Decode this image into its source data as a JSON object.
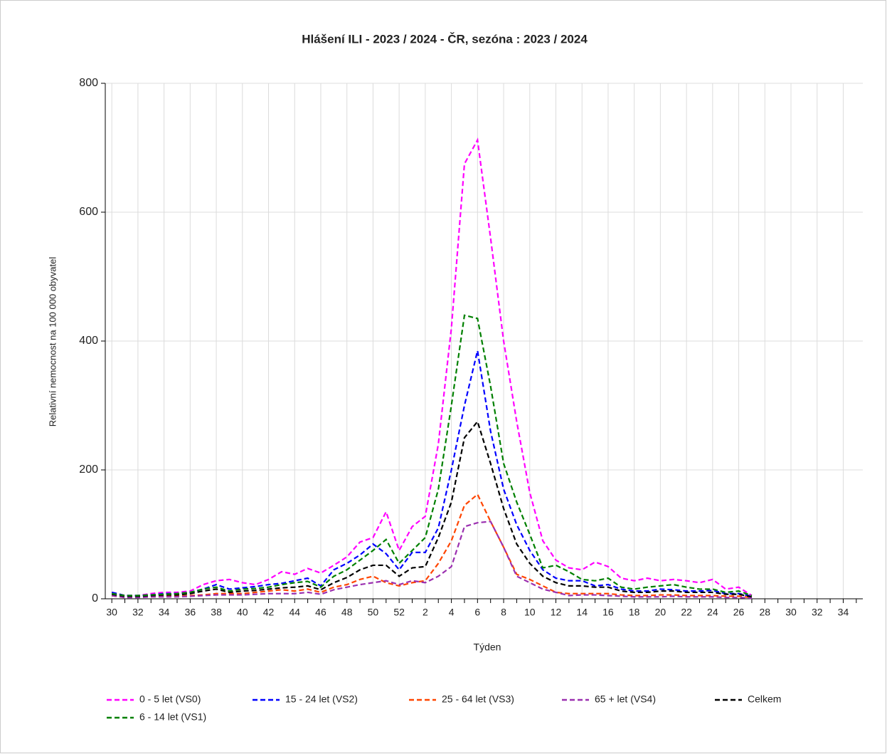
{
  "chart_data": {
    "type": "line",
    "title": "Hlášení ILI - 2023 / 2024 - ČR, sezóna : 2023 / 2024",
    "x_label": "Týden",
    "y_label": "Relativní nemocnost na 100 000 obyvatel",
    "categories": [
      "30",
      null,
      "32",
      null,
      "34",
      null,
      "36",
      null,
      "38",
      null,
      "40",
      null,
      "42",
      null,
      "44",
      null,
      "46",
      null,
      "48",
      null,
      "50",
      null,
      "52",
      null,
      "2",
      null,
      "4",
      null,
      "6",
      null,
      "8",
      null,
      "10",
      null,
      "12",
      null,
      "14",
      null,
      "16",
      null,
      "18",
      null,
      "20",
      null,
      "22",
      null,
      "24",
      null,
      "26",
      null,
      "28",
      null,
      "30",
      null,
      "32",
      null,
      "34",
      null
    ],
    "ylim": [
      0,
      800
    ],
    "yticks": [
      0,
      200,
      400,
      600,
      800
    ],
    "grid": true,
    "dashed": true,
    "series": [
      {
        "name": "0 - 5 let (VS0)",
        "color": "#ff00ff",
        "values": [
          10,
          5,
          5,
          8,
          10,
          10,
          12,
          22,
          28,
          30,
          25,
          22,
          30,
          42,
          38,
          47,
          40,
          52,
          65,
          88,
          95,
          135,
          75,
          112,
          128,
          240,
          420,
          675,
          712,
          560,
          400,
          275,
          165,
          90,
          60,
          48,
          45,
          57,
          50,
          32,
          28,
          32,
          28,
          30,
          28,
          25,
          30,
          15,
          18,
          5,
          null,
          null,
          null,
          null,
          null,
          null,
          null,
          null
        ]
      },
      {
        "name": "15 - 24 let (VS2)",
        "color": "#0000ff",
        "values": [
          10,
          5,
          5,
          6,
          8,
          8,
          10,
          15,
          22,
          15,
          17,
          19,
          22,
          24,
          28,
          32,
          20,
          45,
          55,
          68,
          85,
          70,
          45,
          72,
          72,
          110,
          200,
          300,
          385,
          260,
          170,
          115,
          75,
          45,
          32,
          28,
          28,
          20,
          22,
          15,
          12,
          12,
          15,
          14,
          12,
          12,
          13,
          8,
          8,
          4,
          null,
          null,
          null,
          null,
          null,
          null,
          null,
          null
        ]
      },
      {
        "name": "25 - 64 let (VS3)",
        "color": "#ff4500",
        "values": [
          5,
          2,
          3,
          3,
          4,
          4,
          5,
          6,
          8,
          8,
          8,
          10,
          12,
          14,
          12,
          15,
          10,
          18,
          22,
          30,
          35,
          25,
          20,
          25,
          28,
          55,
          90,
          145,
          162,
          120,
          80,
          38,
          30,
          20,
          10,
          8,
          8,
          8,
          8,
          6,
          5,
          5,
          6,
          6,
          5,
          5,
          5,
          4,
          4,
          2,
          null,
          null,
          null,
          null,
          null,
          null,
          null,
          null
        ]
      },
      {
        "name": "65 + let (VS4)",
        "color": "#9b30b0",
        "values": [
          5,
          2,
          2,
          3,
          3,
          3,
          4,
          5,
          6,
          6,
          6,
          7,
          8,
          8,
          8,
          10,
          7,
          14,
          18,
          22,
          25,
          28,
          22,
          28,
          25,
          35,
          50,
          112,
          118,
          120,
          80,
          35,
          25,
          15,
          10,
          5,
          6,
          6,
          5,
          4,
          3,
          3,
          3,
          4,
          3,
          3,
          3,
          2,
          2,
          1,
          null,
          null,
          null,
          null,
          null,
          null,
          null,
          null
        ]
      },
      {
        "name": "Celkem",
        "color": "#000000",
        "values": [
          7,
          4,
          4,
          5,
          6,
          6,
          8,
          12,
          15,
          10,
          12,
          13,
          15,
          17,
          18,
          20,
          14,
          25,
          33,
          45,
          52,
          52,
          35,
          48,
          50,
          95,
          150,
          250,
          275,
          210,
          140,
          85,
          55,
          35,
          25,
          20,
          20,
          18,
          18,
          12,
          10,
          10,
          12,
          12,
          10,
          10,
          10,
          7,
          7,
          3,
          null,
          null,
          null,
          null,
          null,
          null,
          null,
          null
        ]
      },
      {
        "name": "6 - 14 let (VS1)",
        "color": "#008000",
        "values": [
          8,
          5,
          5,
          6,
          7,
          8,
          10,
          15,
          18,
          12,
          15,
          16,
          18,
          22,
          25,
          27,
          18,
          35,
          45,
          60,
          75,
          92,
          55,
          75,
          95,
          170,
          300,
          440,
          435,
          330,
          210,
          150,
          100,
          48,
          52,
          42,
          30,
          28,
          32,
          18,
          15,
          18,
          20,
          22,
          18,
          15,
          15,
          10,
          12,
          5,
          null,
          null,
          null,
          null,
          null,
          null,
          null,
          null
        ]
      }
    ]
  }
}
